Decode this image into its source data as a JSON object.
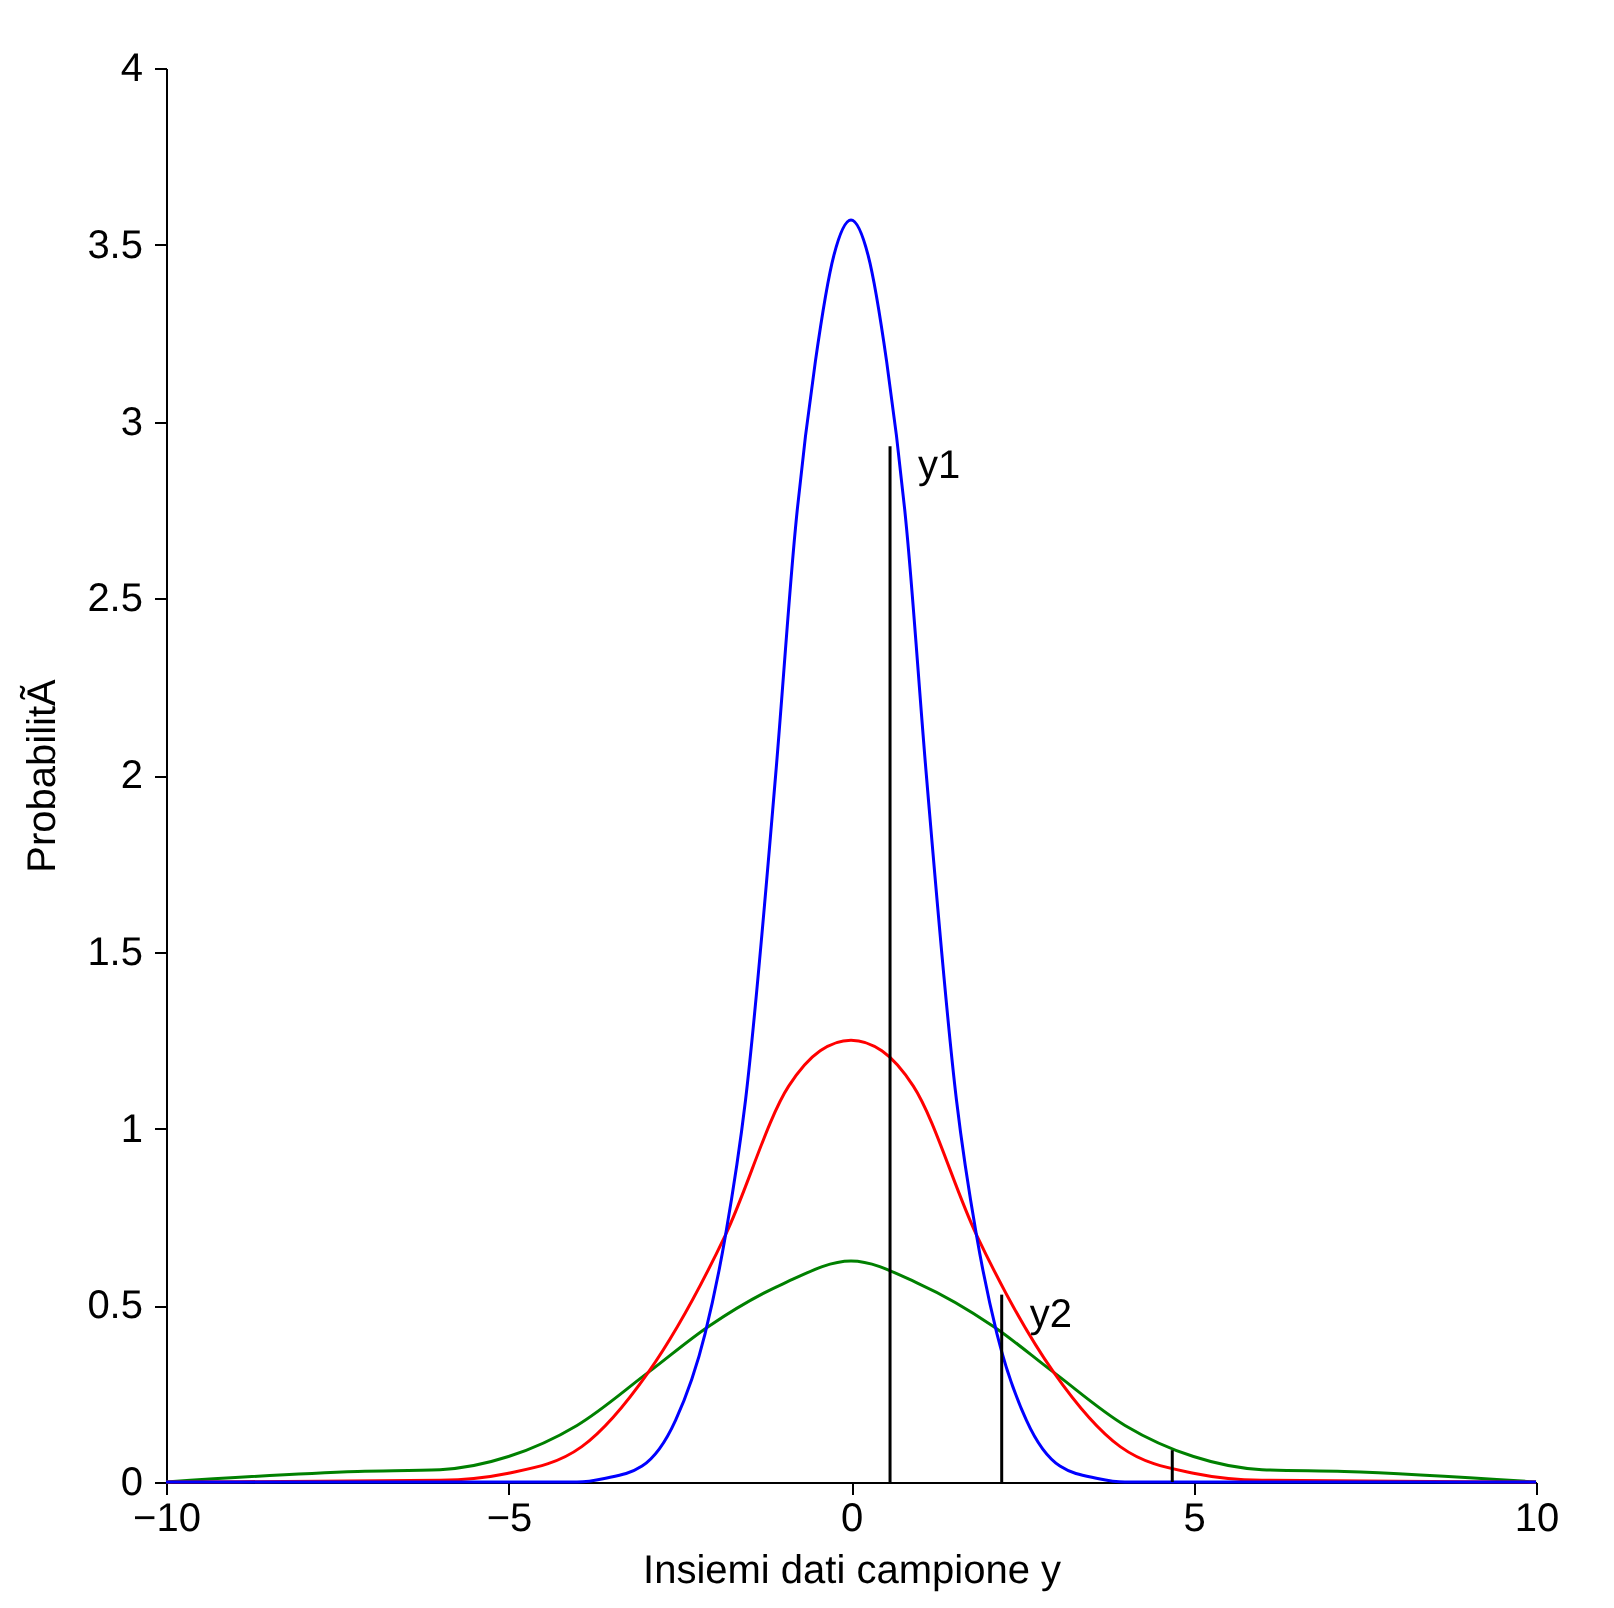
{
  "chart_data": {
    "type": "line",
    "xlabel": "Insiemi dati campione y",
    "ylabel": "ProbabilitÃ",
    "xlim": [
      -10,
      10
    ],
    "xticks": [
      -10,
      -5,
      0,
      5,
      10
    ],
    "ylim": [
      0,
      4
    ],
    "yticks": [
      0,
      0.5,
      1,
      1.5,
      2,
      2.5,
      3,
      3.5,
      4
    ],
    "grid": false,
    "marker": "none",
    "line_style": "solid",
    "series": [
      {
        "color": "#008000",
        "x": [
          -10,
          -7.2,
          -6,
          -5,
          -4,
          -2.96,
          -2.08,
          -1,
          0,
          1,
          2.08,
          2.96,
          4,
          5,
          6,
          7.2,
          10
        ],
        "values": [
          0,
          0.03,
          0.035,
          0.072,
          0.16,
          0.31,
          0.44,
          0.56,
          0.625,
          0.56,
          0.44,
          0.31,
          0.16,
          0.072,
          0.035,
          0.03,
          0
        ]
      },
      {
        "color": "#ff0000",
        "x": [
          -10,
          -6,
          -5,
          -3.93,
          -2.96,
          -1.83,
          -0.91,
          -0.45,
          0,
          0.45,
          0.91,
          1.83,
          2.96,
          3.93,
          5,
          6,
          10
        ],
        "values": [
          0,
          0.005,
          0.025,
          0.1,
          0.31,
          0.7,
          1.12,
          1.22,
          1.25,
          1.22,
          1.12,
          0.7,
          0.31,
          0.1,
          0.025,
          0.005,
          0
        ]
      },
      {
        "color": "#0000ff",
        "x": [
          -10,
          -4,
          -3.6,
          -3.05,
          -2.56,
          -2.13,
          -1.83,
          -1.54,
          -1.1,
          -0.81,
          -0.52,
          -0.25,
          0,
          0.25,
          0.52,
          0.81,
          1.1,
          1.54,
          1.83,
          2.13,
          2.56,
          3.05,
          3.6,
          4,
          10
        ],
        "values": [
          0,
          0,
          0.01,
          0.045,
          0.175,
          0.42,
          0.7,
          1.08,
          2,
          2.7,
          3.17,
          3.47,
          3.57,
          3.47,
          3.17,
          2.7,
          2,
          1.08,
          0.7,
          0.42,
          0.175,
          0.045,
          0.01,
          0,
          0
        ]
      },
      {
        "type": "bar",
        "color": "#000000",
        "x": [
          0.57,
          2.2,
          4.69
        ],
        "values": [
          2.93,
          0.53,
          0.09
        ]
      }
    ],
    "annotations": [
      {
        "text": "y1",
        "x": 0.57,
        "y": 2.93
      },
      {
        "text": "y2",
        "x": 2.2,
        "y": 0.53
      }
    ]
  }
}
